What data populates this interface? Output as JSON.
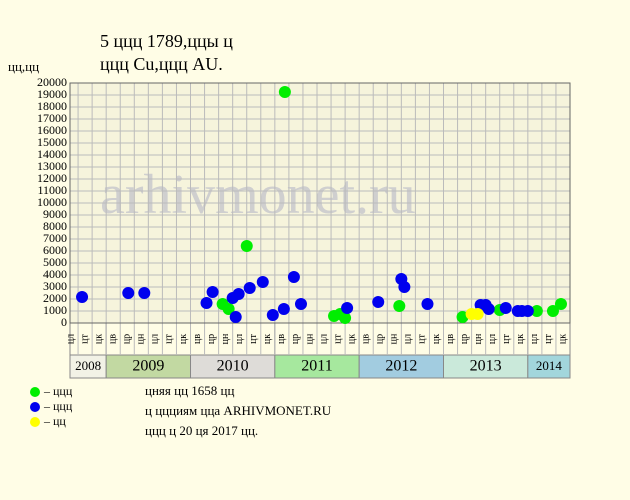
{
  "chart_data": {
    "type": "scatter",
    "title": "5 ццц 1789,ццы ц",
    "subtitle": "ццц Cu,ццц AU.",
    "y_label": "цц,цц",
    "watermark": "arhivmonet.ru",
    "xlim": [
      2008.571,
      2014.5
    ],
    "ylim": [
      0,
      20000
    ],
    "yticks": [
      0,
      1000,
      2000,
      3000,
      4000,
      5000,
      6000,
      7000,
      8000,
      9000,
      10000,
      11000,
      12000,
      13000,
      14000,
      15000,
      16000,
      17000,
      18000,
      19000,
      20000
    ],
    "grid": true,
    "period_labels": [
      "цв",
      "цр",
      "цн",
      "цл",
      "цт",
      "цк"
    ],
    "year_bands": [
      {
        "label": "2008",
        "from": 2008.571,
        "to": 2009,
        "color": "#f2f2e6"
      },
      {
        "label": "2009",
        "from": 2009,
        "to": 2010,
        "color": "#c2d9a2"
      },
      {
        "label": "2010",
        "from": 2010,
        "to": 2011,
        "color": "#dedcd8"
      },
      {
        "label": "2011",
        "from": 2011,
        "to": 2012,
        "color": "#a6e89e"
      },
      {
        "label": "2012",
        "from": 2012,
        "to": 2013,
        "color": "#a2cce0"
      },
      {
        "label": "2013",
        "from": 2013,
        "to": 2014,
        "color": "#cae9da"
      },
      {
        "label": "2014",
        "from": 2014,
        "to": 2014.5,
        "color": "#a2d6dc"
      }
    ],
    "series": [
      {
        "name": "– ццц",
        "color": "#00ee00",
        "x": [
          2010.381,
          2010.452,
          2010.667,
          2011.119,
          2011.702,
          2011.774,
          2011.833,
          2012.476,
          2013.226,
          2013.667,
          2014.107,
          2014.298,
          2014.393
        ],
        "values": [
          1580,
          1170,
          6420,
          19250,
          580,
          750,
          420,
          1420,
          500,
          1080,
          1000,
          1000,
          1580
        ]
      },
      {
        "name": "– ццц",
        "color": "#0000ee",
        "x": [
          2008.714,
          2009.262,
          2009.452,
          2010.19,
          2010.262,
          2010.5,
          2010.536,
          2010.571,
          2010.702,
          2010.857,
          2010.976,
          2011.107,
          2011.226,
          2011.31,
          2011.857,
          2012.226,
          2012.5,
          2012.536,
          2012.81,
          2013.44,
          2013.5,
          2013.536,
          2013.738,
          2013.881,
          2013.929,
          2014.0
        ],
        "values": [
          2170,
          2500,
          2500,
          1670,
          2580,
          2080,
          500,
          2420,
          2920,
          3420,
          670,
          1170,
          3830,
          1580,
          1250,
          1750,
          3670,
          3000,
          1580,
          1500,
          1500,
          1170,
          1250,
          1000,
          1000,
          1000
        ]
      },
      {
        "name": "– цц",
        "color": "#ffff00",
        "x": [
          2013.333,
          2013.405
        ],
        "values": [
          750,
          750
        ]
      }
    ],
    "notes": [
      "цняя цц 1658 цц",
      "ц ццциям цца ARHIVMONET.RU",
      "ццц ц 20 ця 2017 цц."
    ]
  }
}
